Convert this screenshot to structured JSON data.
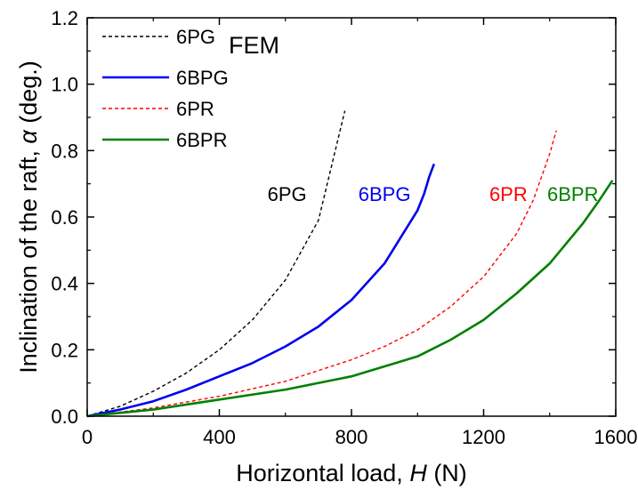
{
  "chart_data": {
    "type": "line",
    "title": "",
    "xlabel_main": "Horizontal load, ",
    "xlabel_var": "H",
    "xlabel_unit": " (N)",
    "ylabel_main": "Inclination of the raft, ",
    "ylabel_var": "α",
    "ylabel_unit": " (deg.)",
    "xlim": [
      0,
      1600
    ],
    "ylim": [
      0,
      1.2
    ],
    "xticks": [
      "0",
      "400",
      "800",
      "1200",
      "1600"
    ],
    "yticks": [
      "0.0",
      "0.2",
      "0.4",
      "0.6",
      "0.8",
      "1.0",
      "1.2"
    ],
    "legend_title": "FEM",
    "legend_position": "top-left",
    "series": [
      {
        "name": "6PG",
        "color": "#000000",
        "dash": true,
        "points": [
          [
            0,
            0
          ],
          [
            100,
            0.03
          ],
          [
            200,
            0.075
          ],
          [
            300,
            0.13
          ],
          [
            400,
            0.2
          ],
          [
            500,
            0.29
          ],
          [
            600,
            0.41
          ],
          [
            700,
            0.59
          ],
          [
            780,
            0.92
          ]
        ]
      },
      {
        "name": "6BPG",
        "color": "#0000ee",
        "dash": false,
        "points": [
          [
            0,
            0
          ],
          [
            100,
            0.02
          ],
          [
            200,
            0.045
          ],
          [
            300,
            0.08
          ],
          [
            400,
            0.12
          ],
          [
            500,
            0.16
          ],
          [
            600,
            0.21
          ],
          [
            700,
            0.27
          ],
          [
            800,
            0.35
          ],
          [
            900,
            0.46
          ],
          [
            950,
            0.54
          ],
          [
            1000,
            0.62
          ],
          [
            1020,
            0.67
          ],
          [
            1035,
            0.72
          ],
          [
            1050,
            0.76
          ]
        ]
      },
      {
        "name": "6PR",
        "color": "#ff0000",
        "dash": true,
        "points": [
          [
            0,
            0
          ],
          [
            200,
            0.025
          ],
          [
            400,
            0.06
          ],
          [
            600,
            0.105
          ],
          [
            800,
            0.17
          ],
          [
            900,
            0.21
          ],
          [
            1000,
            0.26
          ],
          [
            1100,
            0.33
          ],
          [
            1200,
            0.42
          ],
          [
            1300,
            0.55
          ],
          [
            1350,
            0.65
          ],
          [
            1400,
            0.79
          ],
          [
            1420,
            0.86
          ]
        ]
      },
      {
        "name": "6BPR",
        "color": "#008000",
        "dash": false,
        "points": [
          [
            0,
            0
          ],
          [
            200,
            0.02
          ],
          [
            400,
            0.05
          ],
          [
            600,
            0.08
          ],
          [
            800,
            0.12
          ],
          [
            1000,
            0.18
          ],
          [
            1100,
            0.23
          ],
          [
            1200,
            0.29
          ],
          [
            1300,
            0.37
          ],
          [
            1400,
            0.46
          ],
          [
            1500,
            0.58
          ],
          [
            1550,
            0.65
          ],
          [
            1590,
            0.71
          ]
        ]
      }
    ],
    "annotations": [
      {
        "text": "6PG",
        "color": "#000000",
        "x": 605,
        "y": 0.67
      },
      {
        "text": "6BPG",
        "color": "#0000ee",
        "x": 900,
        "y": 0.67
      },
      {
        "text": "6PR",
        "color": "#ff0000",
        "x": 1275,
        "y": 0.67
      },
      {
        "text": "6BPR",
        "color": "#008000",
        "x": 1470,
        "y": 0.67
      }
    ]
  }
}
